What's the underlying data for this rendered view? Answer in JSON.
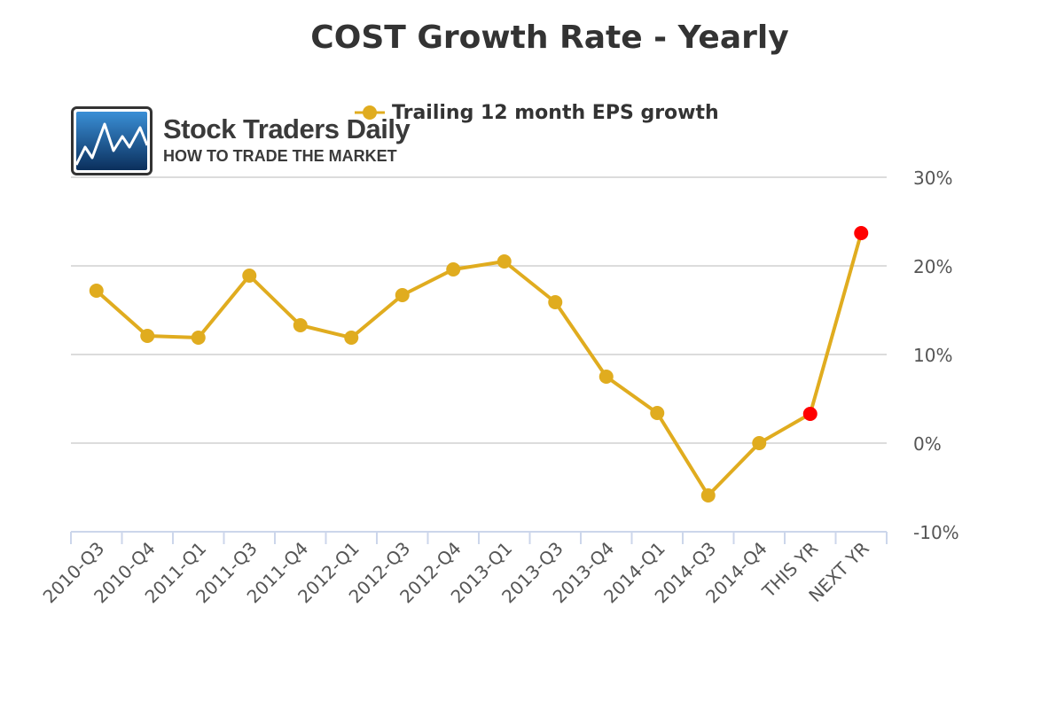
{
  "logo": {
    "name": "Stock Traders Daily",
    "tagline": "HOW TO TRADE THE MARKET"
  },
  "colors": {
    "line": "#e0ac1f",
    "projection_point": "#ff0000",
    "grid": "#d0d0d0",
    "axis": "#ccd6eb",
    "text": "#333333"
  },
  "chart_data": {
    "type": "line",
    "title": "COST Growth Rate - Yearly",
    "xlabel": "",
    "ylabel": "",
    "categories": [
      "2010-Q3",
      "2010-Q4",
      "2011-Q1",
      "2011-Q3",
      "2011-Q4",
      "2012-Q1",
      "2012-Q3",
      "2012-Q4",
      "2013-Q1",
      "2013-Q3",
      "2013-Q4",
      "2014-Q1",
      "2014-Q3",
      "2014-Q4",
      "THIS YR",
      "NEXT YR"
    ],
    "series": [
      {
        "name": "Trailing 12 month EPS growth",
        "values": [
          17.2,
          12.1,
          11.9,
          18.9,
          13.3,
          11.9,
          16.7,
          19.6,
          20.5,
          15.9,
          7.5,
          3.4,
          -5.9,
          0.0,
          3.3,
          23.7
        ],
        "highlight_categories": [
          "THIS YR",
          "NEXT YR"
        ]
      }
    ],
    "ylim": [
      -10,
      30
    ],
    "yticks": [
      -10,
      0,
      10,
      20,
      30
    ],
    "ytick_labels": [
      "-10%",
      "0%",
      "10%",
      "20%",
      "30%"
    ],
    "y_axis_side": "right",
    "grid": true,
    "legend": "top-center"
  }
}
